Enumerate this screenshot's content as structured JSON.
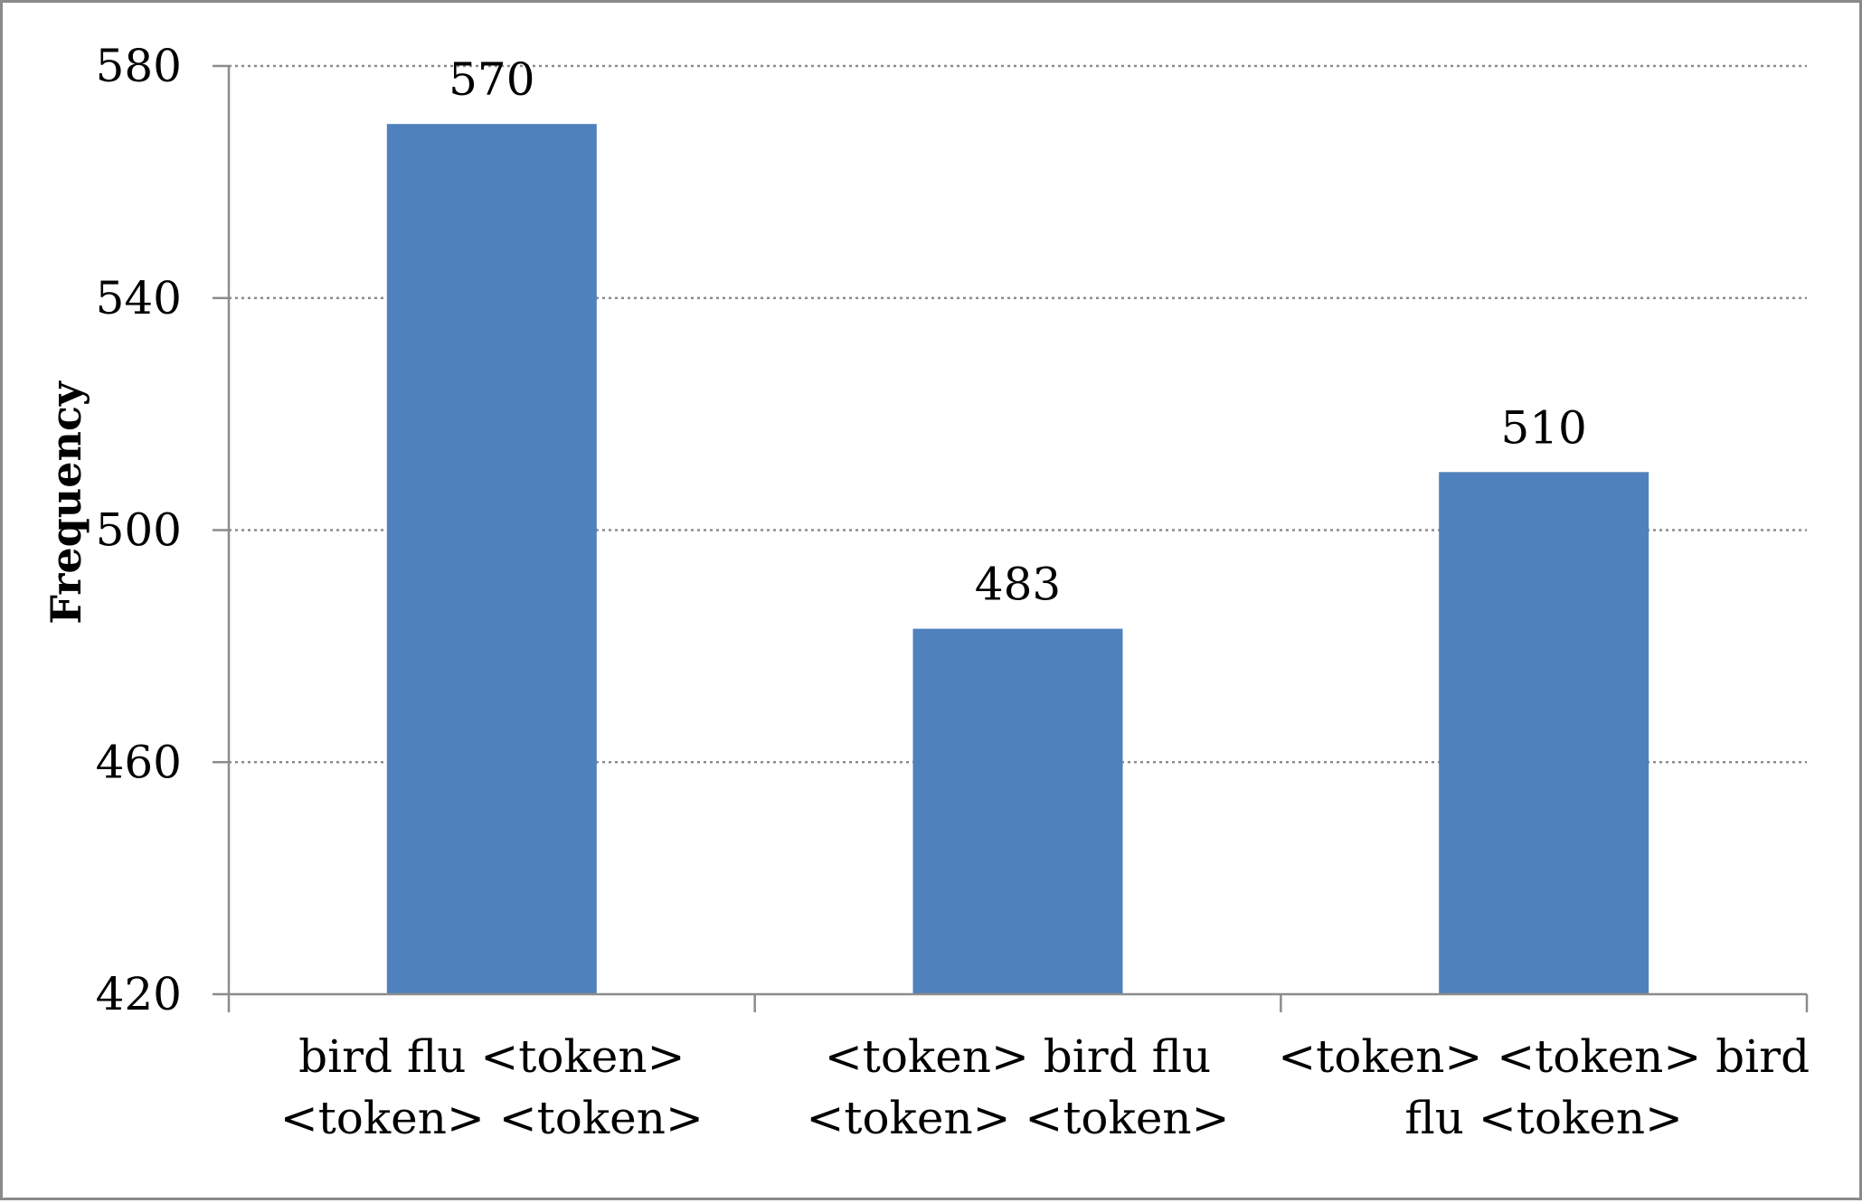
{
  "chart_data": {
    "type": "bar",
    "title": "",
    "xlabel": "",
    "ylabel": "Frequency",
    "ylim": [
      420,
      580
    ],
    "yticks": [
      420,
      460,
      500,
      540,
      580
    ],
    "grid": true,
    "categories": [
      [
        "bird flu <token>",
        "<token> <token>"
      ],
      [
        "<token> bird flu",
        "<token> <token>"
      ],
      [
        "<token> <token> bird",
        "flu <token>"
      ]
    ],
    "values": [
      570,
      483,
      510
    ],
    "data_labels": [
      "570",
      "483",
      "510"
    ],
    "colors": {
      "bar": "#4f81bd",
      "grid": "#8c8c8c",
      "axis": "#8c8c8c"
    }
  }
}
